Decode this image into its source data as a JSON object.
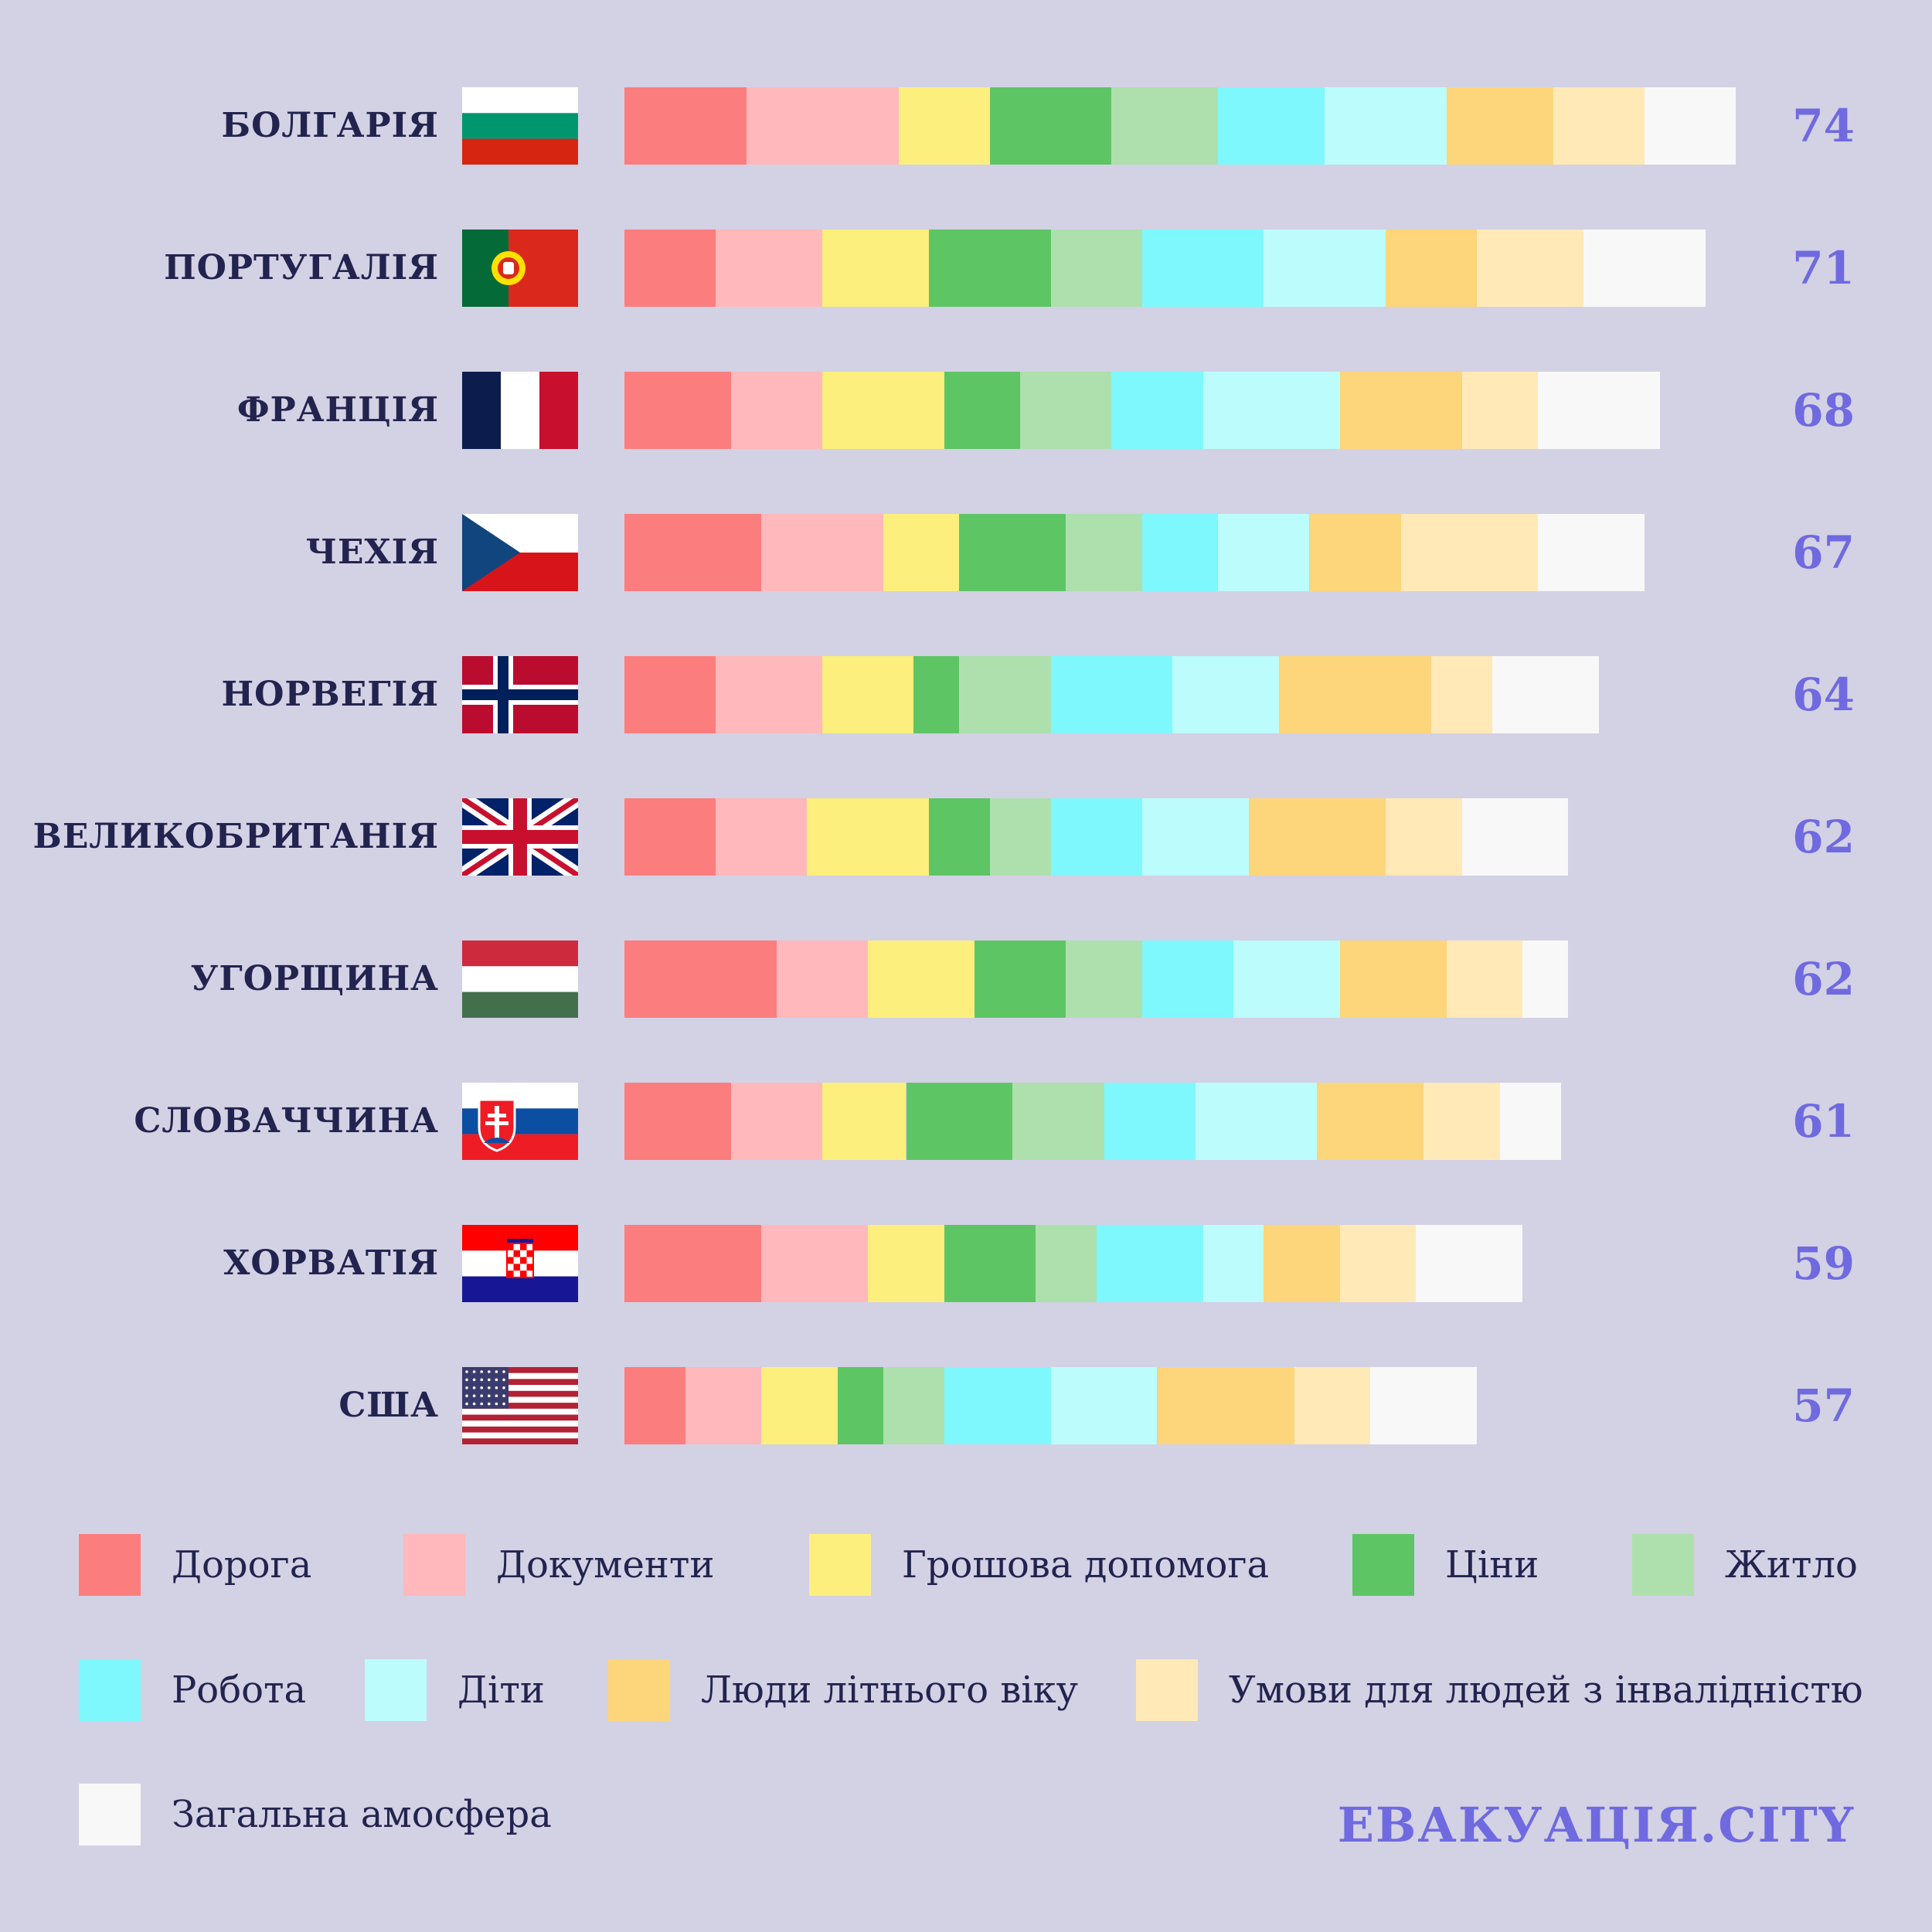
{
  "chart_data": {
    "type": "bar",
    "orientation": "horizontal",
    "stacked": true,
    "categories": [
      "БОЛГАРІЯ",
      "ПОРТУГАЛІЯ",
      "ФРАНЦІЯ",
      "ЧЕХІЯ",
      "НОРВЕГІЯ",
      "ВЕЛИКОБРИТАНІЯ",
      "УГОРЩИНА",
      "СЛОВАЧЧИНА",
      "ХОРВАТІЯ",
      "США"
    ],
    "flags": [
      "flag-bulgaria-icon",
      "flag-portugal-icon",
      "flag-france-icon",
      "flag-czechia-icon",
      "flag-norway-icon",
      "flag-uk-icon",
      "flag-hungary-icon",
      "flag-slovakia-icon",
      "flag-croatia-icon",
      "flag-usa-icon"
    ],
    "totals": [
      "74",
      "71",
      "68",
      "67",
      "64",
      "62",
      "62",
      "61",
      "59",
      "57"
    ],
    "series": [
      {
        "name": "Дорога",
        "color": "#fc7d7d",
        "values": [
          8,
          6,
          7,
          9,
          6,
          6,
          10,
          7,
          9,
          4
        ]
      },
      {
        "name": "Документи",
        "color": "#ffb8bb",
        "values": [
          10,
          7,
          6,
          8,
          7,
          6,
          6,
          6,
          7,
          5
        ]
      },
      {
        "name": "Грошова допомога",
        "color": "#fcef7d",
        "values": [
          6,
          7,
          8,
          5,
          6,
          8,
          7,
          5.5,
          5,
          5
        ]
      },
      {
        "name": "Ціни",
        "color": "#5ec565",
        "values": [
          8,
          8,
          5,
          7,
          3,
          4,
          6,
          7,
          6,
          3
        ]
      },
      {
        "name": "Житло",
        "color": "#aee0ae",
        "values": [
          7,
          6,
          6,
          5,
          6,
          4,
          5,
          6,
          4,
          4
        ]
      },
      {
        "name": "Робота",
        "color": "#7ef8fc",
        "values": [
          7,
          8,
          6,
          5,
          8,
          6,
          6,
          6,
          7,
          7
        ]
      },
      {
        "name": "Діти",
        "color": "#bcfcfc",
        "values": [
          8,
          8,
          9,
          6,
          7,
          7,
          7,
          8,
          4,
          7
        ]
      },
      {
        "name": "Люди літнього віку",
        "color": "#fdd57a",
        "values": [
          7,
          6,
          8,
          6,
          10,
          9,
          7,
          7,
          5,
          9
        ]
      },
      {
        "name": "Умови для людей з інвалідністю",
        "color": "#ffe9b7",
        "values": [
          6,
          7,
          5,
          9,
          4,
          5,
          5,
          5,
          5,
          5
        ]
      },
      {
        "name": "Загальна амосфера",
        "color": "#f8f8f8",
        "values": [
          6,
          8,
          8,
          7,
          7,
          7,
          3,
          4,
          7,
          7
        ]
      }
    ]
  },
  "brand": "ЕВАКУАЦІЯ.CITY",
  "colors": {
    "background": "#d3d1e4",
    "label_text": "#22244f",
    "accent": "#6f6ae0"
  }
}
